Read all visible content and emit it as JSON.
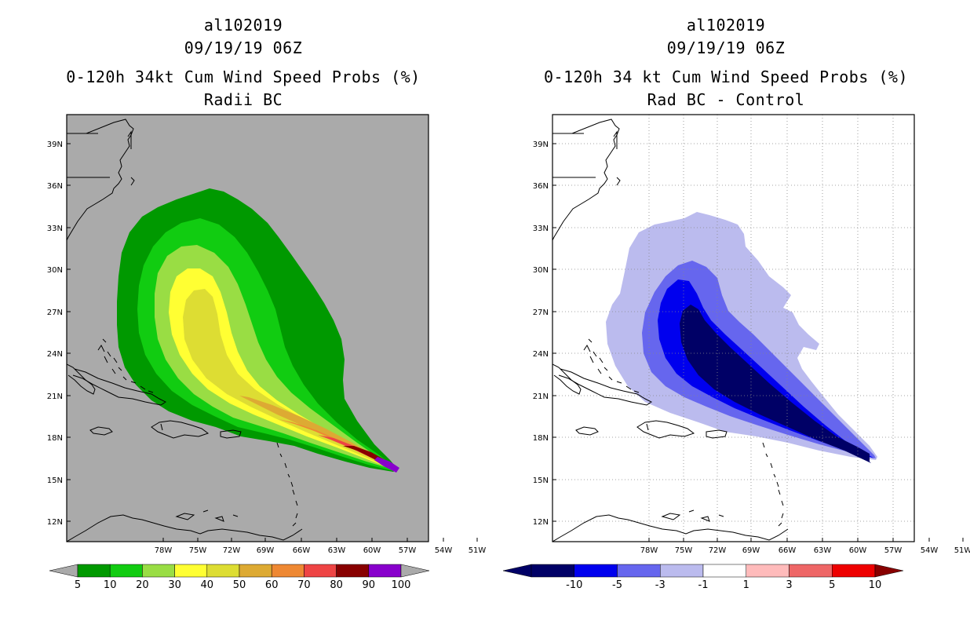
{
  "left_panel": {
    "title_line1": "al102019",
    "title_line2": "09/19/19 06Z",
    "title_line3": "0-120h 34kt Cum Wind Speed Probs (%)",
    "title_line4": "Radii BC"
  },
  "right_panel": {
    "title_line1": "al102019",
    "title_line2": "09/19/19 06Z",
    "title_line3": "0-120h 34 kt Cum Wind Speed Probs (%)",
    "title_line4": "Rad BC - Control"
  },
  "map": {
    "lat_labels": [
      "39N",
      "36N",
      "33N",
      "30N",
      "27N",
      "24N",
      "21N",
      "18N",
      "15N",
      "12N"
    ],
    "lon_labels": [
      "78W",
      "75W",
      "72W",
      "69W",
      "66W",
      "63W",
      "60W",
      "57W",
      "54W",
      "51W"
    ]
  },
  "left_colorbar": {
    "labels": [
      "5",
      "10",
      "20",
      "30",
      "40",
      "50",
      "60",
      "70",
      "80",
      "90",
      "100"
    ],
    "colors": [
      "#009900",
      "#11cc11",
      "#99dd44",
      "#ffff33",
      "#dddd33",
      "#ddaa33",
      "#ee8833",
      "#ee4444",
      "#880000",
      "#8800cc"
    ],
    "end_color": "#aaaaaa"
  },
  "right_colorbar": {
    "labels": [
      "-10",
      "-5",
      "-3",
      "-1",
      "1",
      "3",
      "5",
      "10"
    ],
    "colors": [
      "#000066",
      "#0000ee",
      "#6666ee",
      "#bbbbee",
      "#ffffff",
      "#ffbbbb",
      "#ee6666",
      "#ee0000"
    ],
    "low_color": "#000066",
    "high_color": "#880000"
  }
}
